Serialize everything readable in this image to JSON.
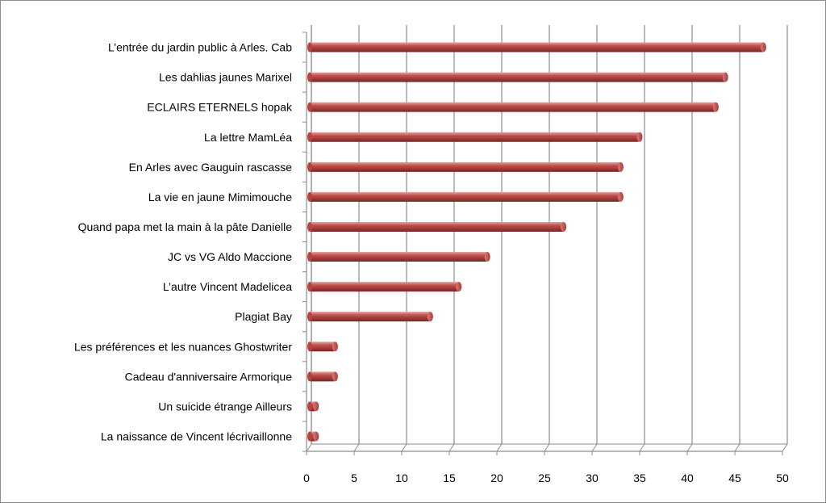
{
  "chart_data": {
    "type": "bar",
    "orientation": "horizontal",
    "style": "3d-cylinder",
    "bar_color": "#c0504d",
    "categories": [
      "L’entrée du jardin public à Arles. Cab",
      "Les dahlias jaunes Marixel",
      "ECLAIRS ETERNELS  hopak",
      "La lettre   MamLéa",
      "En Arles avec Gauguin rascasse",
      "La vie en jaune Mimimouche",
      "Quand papa met la main à la pâte Danielle",
      "JC vs VG Aldo Maccione",
      "L’autre Vincent Madelicea",
      "Plagiat  Bay",
      "Les préférences  et les nuances Ghostwriter",
      "Cadeau d'anniversaire Armorique",
      "Un suicide étrange Ailleurs",
      "La naissance de Vincent lécrivaillonne"
    ],
    "values": [
      48,
      44,
      43,
      35,
      33,
      33,
      27,
      19,
      16,
      13,
      3,
      3,
      1,
      1
    ],
    "xlim": [
      0,
      50
    ],
    "xticks": [
      "0",
      "5",
      "10",
      "15",
      "20",
      "25",
      "30",
      "35",
      "40",
      "45",
      "50"
    ],
    "grid": true,
    "legend": "none"
  }
}
